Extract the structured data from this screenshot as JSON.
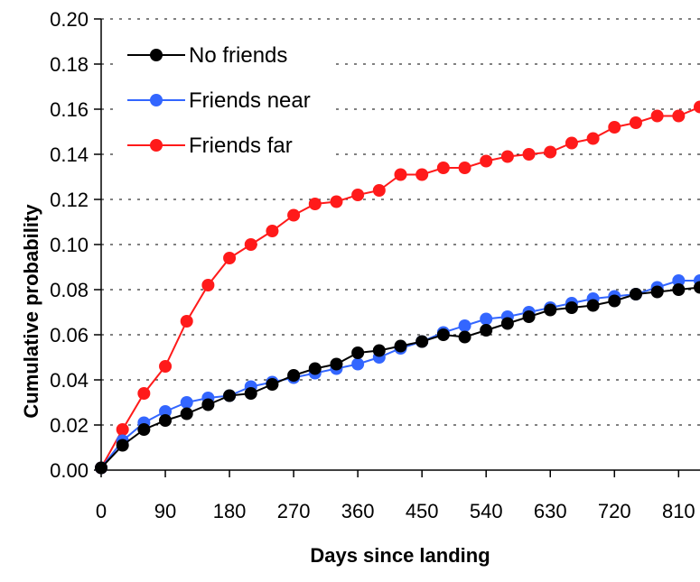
{
  "chart_data": {
    "type": "line",
    "xlabel": "Days since landing",
    "ylabel": "Cumulative probability",
    "xlim": [
      0,
      840
    ],
    "ylim": [
      0,
      0.2
    ],
    "x_ticks": [
      "0",
      "90",
      "180",
      "270",
      "360",
      "450",
      "540",
      "630",
      "720",
      "810"
    ],
    "x_tick_values": [
      0,
      90,
      180,
      270,
      360,
      450,
      540,
      630,
      720,
      810
    ],
    "y_ticks": [
      "0.00",
      "0.02",
      "0.04",
      "0.06",
      "0.08",
      "0.10",
      "0.12",
      "0.14",
      "0.16",
      "0.18",
      "0.20"
    ],
    "y_tick_values": [
      0,
      0.02,
      0.04,
      0.06,
      0.08,
      0.1,
      0.12,
      0.14,
      0.16,
      0.18,
      0.2
    ],
    "grid": "horizontal dashed",
    "legend_position": "top-left",
    "x": [
      0,
      30,
      60,
      90,
      120,
      150,
      180,
      210,
      240,
      270,
      300,
      330,
      360,
      390,
      420,
      450,
      480,
      510,
      540,
      570,
      600,
      630,
      660,
      690,
      720,
      750,
      780,
      810,
      840
    ],
    "series": [
      {
        "name": "No friends",
        "color": "#000000",
        "values": [
          0.001,
          0.011,
          0.018,
          0.022,
          0.025,
          0.029,
          0.033,
          0.034,
          0.038,
          0.042,
          0.045,
          0.047,
          0.052,
          0.053,
          0.055,
          0.057,
          0.06,
          0.059,
          0.062,
          0.065,
          0.068,
          0.071,
          0.072,
          0.073,
          0.075,
          0.078,
          0.079,
          0.08,
          0.081
        ]
      },
      {
        "name": "Friends near",
        "color": "#3366ff",
        "values": [
          0.001,
          0.013,
          0.021,
          0.026,
          0.03,
          0.032,
          0.033,
          0.037,
          0.039,
          0.041,
          0.043,
          0.045,
          0.047,
          0.05,
          0.054,
          0.057,
          0.061,
          0.064,
          0.067,
          0.068,
          0.07,
          0.072,
          0.074,
          0.076,
          0.077,
          0.078,
          0.081,
          0.084,
          0.084
        ]
      },
      {
        "name": "Friends far",
        "color": "#ff1a1a",
        "values": [
          0.001,
          0.018,
          0.034,
          0.046,
          0.066,
          0.082,
          0.094,
          0.1,
          0.106,
          0.113,
          0.118,
          0.119,
          0.122,
          0.124,
          0.131,
          0.131,
          0.134,
          0.134,
          0.137,
          0.139,
          0.14,
          0.141,
          0.145,
          0.147,
          0.152,
          0.154,
          0.157,
          0.157,
          0.161
        ]
      }
    ]
  }
}
